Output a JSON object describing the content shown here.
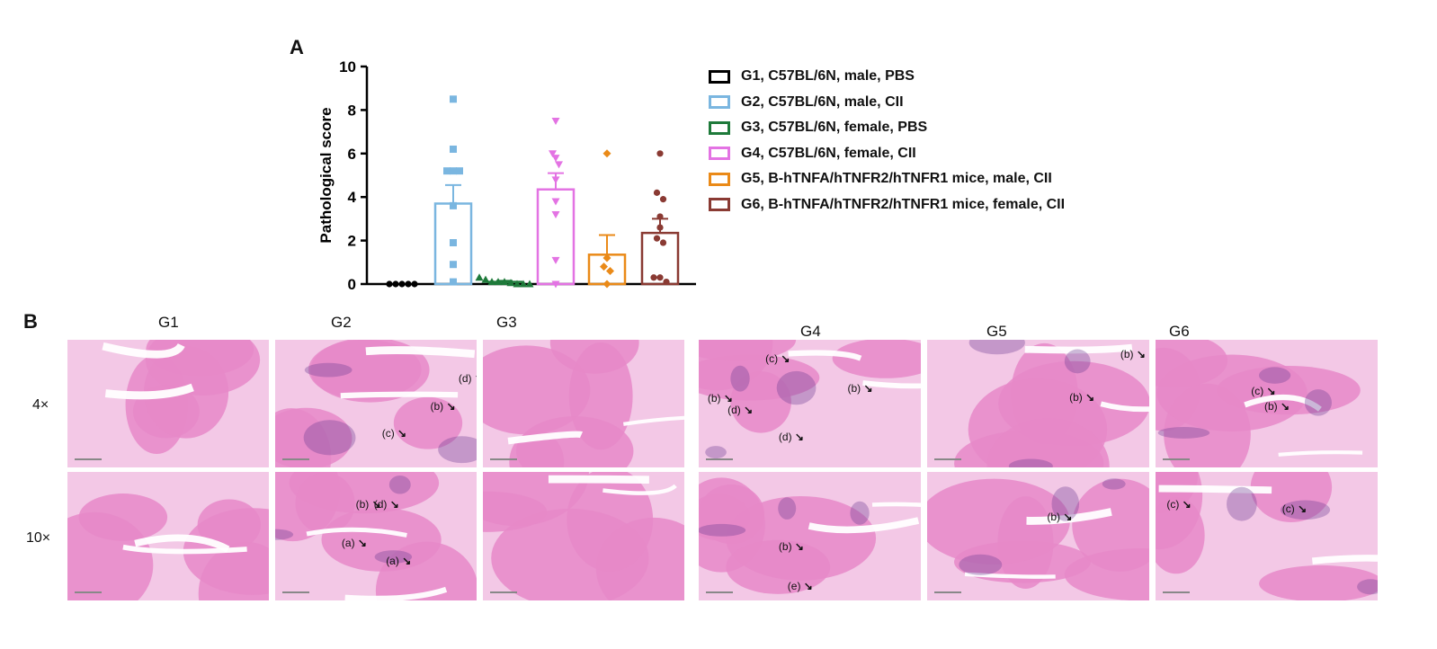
{
  "panel_a_letter": "A",
  "panel_b_letter": "B",
  "chart_data": {
    "type": "bar",
    "ylabel": "Pathological score",
    "ylim": [
      0,
      10
    ],
    "yticks": [
      "0",
      "2",
      "4",
      "6",
      "8",
      "10"
    ],
    "error_bars": "SEM",
    "legend_position": "right",
    "series": [
      {
        "name": "G1, C57BL/6N, male, PBS",
        "color": "#000000",
        "marker": "circle",
        "mean": 0,
        "sem": 0,
        "points": [
          0,
          0,
          0,
          0,
          0
        ]
      },
      {
        "name": "G2, C57BL/6N, male, CII",
        "color": "#7ab6e0",
        "marker": "square",
        "mean": 3.7,
        "sem": 0.85,
        "points": [
          8.5,
          6.2,
          5.2,
          5.2,
          5.2,
          3.6,
          1.9,
          0.9,
          0.1
        ]
      },
      {
        "name": "G3, C57BL/6N, female, PBS",
        "color": "#1e7a3a",
        "marker": "triangle-up",
        "mean": 0.1,
        "sem": 0.05,
        "points": [
          0.3,
          0.2,
          0.1,
          0.1,
          0.1,
          0.05,
          0,
          0,
          0
        ]
      },
      {
        "name": "G4, C57BL/6N, female, CII",
        "color": "#e373e3",
        "marker": "triangle-down",
        "mean": 4.35,
        "sem": 0.75,
        "points": [
          7.5,
          6.0,
          5.8,
          5.5,
          4.8,
          3.8,
          3.2,
          1.1,
          0
        ]
      },
      {
        "name": "G5, B-hTNFA/hTNFR2/hTNFR1 mice, male, CII",
        "color": "#ea8a18",
        "marker": "diamond",
        "mean": 1.35,
        "sem": 0.9,
        "points": [
          6.0,
          1.2,
          0.8,
          0.6,
          0
        ]
      },
      {
        "name": "G6, B-hTNFA/hTNFR2/hTNFR1 mice, female, CII",
        "color": "#8a3a33",
        "marker": "circle",
        "mean": 2.35,
        "sem": 0.65,
        "points": [
          6.0,
          4.2,
          3.9,
          3.1,
          2.6,
          2.1,
          1.9,
          0.3,
          0.3,
          0.1
        ]
      }
    ]
  },
  "histology": {
    "columns": [
      "G1",
      "G2",
      "G3",
      "G4",
      "G5",
      "G6"
    ],
    "rows": [
      "4×",
      "10×"
    ],
    "tissue_pink": "#e688c8",
    "tissue_light": "#f3c8e6",
    "tissue_purple": "#6e3b92",
    "annotations": [
      {
        "panel": "G2-4x",
        "text": "(d)"
      },
      {
        "panel": "G2-4x",
        "text": "(b)"
      },
      {
        "panel": "G2-4x",
        "text": "(c)"
      },
      {
        "panel": "G2-10x",
        "text": "(b)"
      },
      {
        "panel": "G2-10x",
        "text": "(d)"
      },
      {
        "panel": "G2-10x",
        "text": "(a)"
      },
      {
        "panel": "G2-10x",
        "text": "(a)"
      },
      {
        "panel": "G4-4x",
        "text": "(c)"
      },
      {
        "panel": "G4-4x",
        "text": "(b)"
      },
      {
        "panel": "G4-4x",
        "text": "(d)"
      },
      {
        "panel": "G4-4x",
        "text": "(d)"
      },
      {
        "panel": "G4-4x",
        "text": "(b)"
      },
      {
        "panel": "G4-10x",
        "text": "(b)"
      },
      {
        "panel": "G4-10x",
        "text": "(e)"
      },
      {
        "panel": "G5-4x",
        "text": "(b)"
      },
      {
        "panel": "G5-4x",
        "text": "(b)"
      },
      {
        "panel": "G5-10x",
        "text": "(b)"
      },
      {
        "panel": "G6-4x",
        "text": "(c)"
      },
      {
        "panel": "G6-4x",
        "text": "(b)"
      },
      {
        "panel": "G6-10x",
        "text": "(c)"
      },
      {
        "panel": "G6-10x",
        "text": "(c)"
      }
    ]
  }
}
